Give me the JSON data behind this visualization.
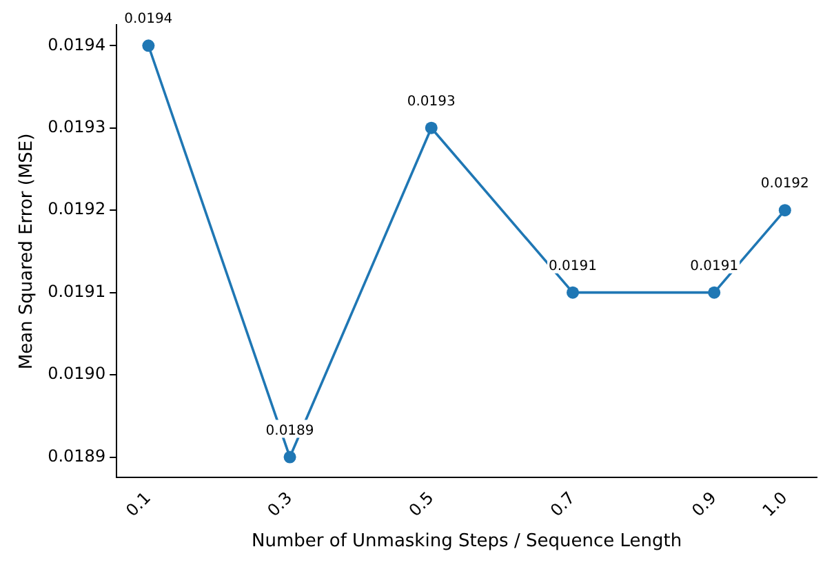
{
  "chart_data": {
    "type": "line",
    "xlabel": "Number of Unmasking Steps / Sequence Length",
    "ylabel": "Mean Squared Error (MSE)",
    "x": [
      0.1,
      0.3,
      0.5,
      0.7,
      0.9,
      1.0
    ],
    "series": [
      {
        "color": "#1f77b4",
        "values": [
          0.0194,
          0.0189,
          0.0193,
          0.0191,
          0.0191,
          0.0192
        ]
      }
    ],
    "xlim": [
      0.055,
      1.045
    ],
    "xticks": [
      0.1,
      0.3,
      0.5,
      0.7,
      0.9,
      {
        "value": 1.0,
        "label": "1.0"
      }
    ],
    "ylim": [
      0.018875,
      0.019425
    ],
    "yticks": [
      0.0189,
      {
        "value": 0.019,
        "label": "0.0190"
      },
      0.0191,
      0.0192,
      0.0193,
      0.0194
    ],
    "data_labels": true,
    "marker": "circle",
    "line_style": "solid",
    "grid": false,
    "legend": false
  }
}
